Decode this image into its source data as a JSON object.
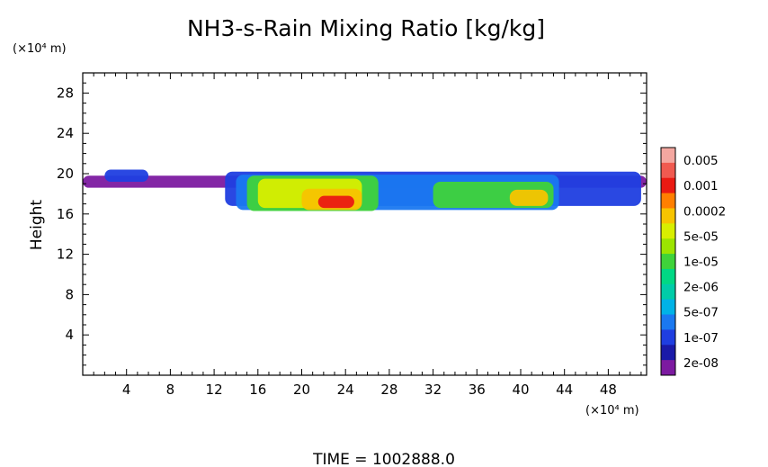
{
  "chart_data": {
    "type": "heatmap",
    "title": "NH3-s-Rain Mixing Ratio [kg/kg]",
    "xlabel": "",
    "ylabel": "Height",
    "x_scale_label": "(×10⁴ m)",
    "y_scale_label": "(×10⁴ m)",
    "xlim": [
      0,
      51.5
    ],
    "ylim": [
      0,
      30
    ],
    "x_ticks": [
      4,
      8,
      12,
      16,
      20,
      24,
      28,
      32,
      36,
      40,
      44,
      48
    ],
    "y_ticks": [
      4,
      8,
      12,
      16,
      20,
      24,
      28
    ],
    "time_label": "TIME  =  1002888.0",
    "colorbar": {
      "labels": [
        "0.005",
        "0.001",
        "0.0002",
        "5e-05",
        "1e-05",
        "2e-06",
        "5e-07",
        "1e-07",
        "2e-08"
      ],
      "colors": [
        "#f4a7a0",
        "#f05a50",
        "#ea1a12",
        "#ff7f00",
        "#f7c400",
        "#d8ee00",
        "#9ce400",
        "#3fd33a",
        "#00d884",
        "#00cca8",
        "#00b2e6",
        "#1a78f0",
        "#1f3ee0",
        "#1a1aa8",
        "#7c1aa0"
      ]
    },
    "regions": [
      {
        "level": "2e-08",
        "x0": 0.0,
        "x1": 51.5,
        "y0": 18.6,
        "y1": 19.8
      },
      {
        "level": "1e-07",
        "x0": 2.0,
        "x1": 6.0,
        "y0": 19.2,
        "y1": 20.4
      },
      {
        "level": "1e-07",
        "x0": 13.0,
        "x1": 51.0,
        "y0": 16.8,
        "y1": 20.2
      },
      {
        "level": "5e-07",
        "x0": 14.0,
        "x1": 43.5,
        "y0": 16.4,
        "y1": 19.9
      },
      {
        "level": "1e-05",
        "x0": 15.0,
        "x1": 27.0,
        "y0": 16.3,
        "y1": 19.8
      },
      {
        "level": "5e-05",
        "x0": 16.0,
        "x1": 25.5,
        "y0": 16.6,
        "y1": 19.5
      },
      {
        "level": "0.0002",
        "x0": 20.0,
        "x1": 25.5,
        "y0": 16.4,
        "y1": 18.5
      },
      {
        "level": "0.001",
        "x0": 21.5,
        "x1": 24.8,
        "y0": 16.6,
        "y1": 17.8
      },
      {
        "level": "1e-05",
        "x0": 32.0,
        "x1": 43.0,
        "y0": 16.6,
        "y1": 19.2
      },
      {
        "level": "0.0002",
        "x0": 39.0,
        "x1": 42.5,
        "y0": 16.8,
        "y1": 18.4
      }
    ]
  }
}
